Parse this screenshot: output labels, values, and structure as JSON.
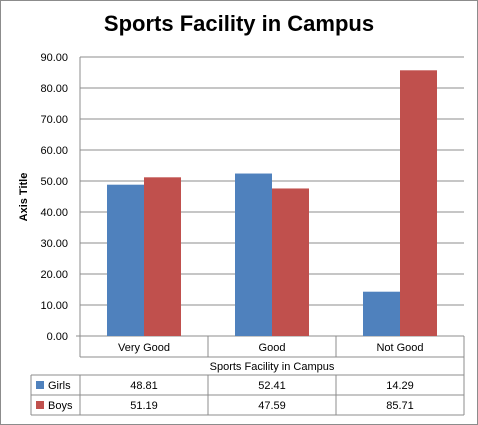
{
  "chart_data": {
    "type": "bar",
    "title": "Sports Facility in Campus",
    "xlabel": "Sports Facility in Campus",
    "ylabel": "Axis Title",
    "categories": [
      "Very Good",
      "Good",
      "Not Good"
    ],
    "ylim": [
      0,
      90
    ],
    "yticks": [
      "0.00",
      "10.00",
      "20.00",
      "30.00",
      "40.00",
      "50.00",
      "60.00",
      "70.00",
      "80.00",
      "90.00"
    ],
    "grid": true,
    "legend": "data-table",
    "series": [
      {
        "name": "Girls",
        "color": "#4f81bd",
        "values": [
          48.81,
          52.41,
          14.29
        ],
        "labels": [
          "48.81",
          "52.41",
          "14.29"
        ]
      },
      {
        "name": "Boys",
        "color": "#c0504d",
        "values": [
          51.19,
          47.59,
          85.71
        ],
        "labels": [
          "51.19",
          "47.59",
          "85.71"
        ]
      }
    ]
  }
}
